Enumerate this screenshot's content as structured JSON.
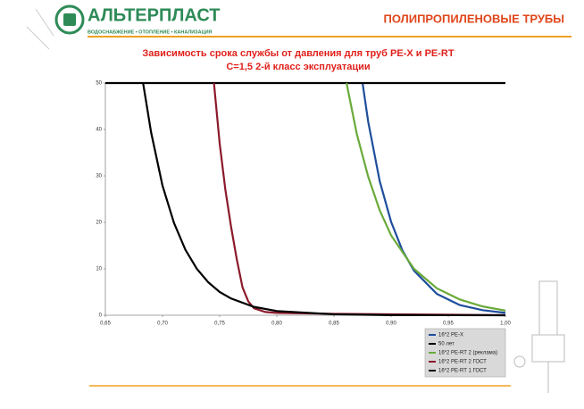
{
  "header": {
    "brand": "АЛЬТЕРПЛАСТ",
    "tagline": "ВОДОСНАБЖЕНИЕ • ОТОПЛЕНИЕ • КАНАЛИЗАЦИЯ",
    "section": "ПОЛИПРОПИЛЕНОВЫЕ ТРУБЫ"
  },
  "chart_data": {
    "type": "line",
    "title": "Зависимость срока службы от давления для труб PE-X и PE-RT",
    "subtitle": "С=1,5 2-й класс эксплуатации",
    "xlim": [
      0.65,
      1.0
    ],
    "ylim": [
      0,
      50
    ],
    "xticks": [
      {
        "value": 0.65,
        "label": "0,65"
      },
      {
        "value": 0.7,
        "label": "0,70"
      },
      {
        "value": 0.75,
        "label": "0,75"
      },
      {
        "value": 0.8,
        "label": "0,80"
      },
      {
        "value": 0.85,
        "label": "0,85"
      },
      {
        "value": 0.9,
        "label": "0,90"
      },
      {
        "value": 0.95,
        "label": "0,95"
      },
      {
        "value": 1.0,
        "label": "1,00"
      }
    ],
    "yticks": [
      0,
      10,
      20,
      30,
      40,
      50
    ],
    "grid": false,
    "legend": "bottom-right",
    "series": [
      {
        "name": "16*2 PE-X",
        "color": "#1f4e9c",
        "x": [
          0.875,
          0.88,
          0.89,
          0.9,
          0.91,
          0.92,
          0.94,
          0.96,
          0.98,
          1.0
        ],
        "values": [
          50,
          41.6,
          28.9,
          20.1,
          13.9,
          9.6,
          4.6,
          2.2,
          1.1,
          0.5
        ]
      },
      {
        "name": "50 лет",
        "color": "#000000",
        "x": [
          0.65,
          1.0
        ],
        "values": [
          50,
          50
        ]
      },
      {
        "name": "16*2 PE-RT 2 (реклама)",
        "color": "#6aaa3a",
        "x": [
          0.861,
          0.87,
          0.88,
          0.89,
          0.9,
          0.92,
          0.94,
          0.96,
          0.98,
          1.0
        ],
        "values": [
          50,
          39,
          29.8,
          22.6,
          17.2,
          10,
          5.8,
          3.4,
          1.9,
          1
        ]
      },
      {
        "name": "16*2 PE-RT 2 ГОСТ",
        "color": "#8b1a2b",
        "x": [
          0.745,
          0.75,
          0.755,
          0.76,
          0.765,
          0.77,
          0.775,
          0.78,
          0.79,
          0.8,
          0.85,
          0.9,
          1.0
        ],
        "values": [
          50,
          37,
          27,
          19,
          12,
          6,
          3,
          1.5,
          0.7,
          0.5,
          0.3,
          0.2,
          0
        ]
      },
      {
        "name": "16*2 PE-RT 1 ГОСТ",
        "color": "#000000",
        "x": [
          0.683,
          0.69,
          0.7,
          0.71,
          0.72,
          0.73,
          0.74,
          0.75,
          0.76,
          0.78,
          0.8,
          0.85,
          0.9,
          1.0
        ],
        "values": [
          50,
          39.4,
          27.9,
          19.9,
          14.1,
          10,
          7.1,
          5,
          3.6,
          1.8,
          0.9,
          0.2,
          0.03,
          0
        ]
      }
    ]
  }
}
